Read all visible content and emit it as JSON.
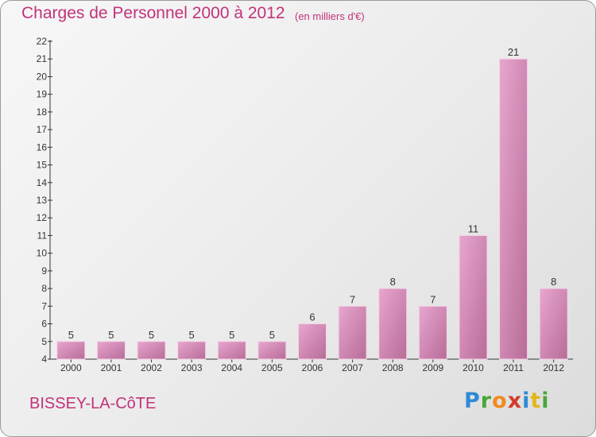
{
  "header": {
    "title": "Charges de Personnel 2000 à 2012",
    "subtitle": "(en milliers d'€)"
  },
  "footer": {
    "commune": "BISSEY-LA-CôTE",
    "logo_letters": [
      "P",
      "r",
      "o",
      "x",
      "i",
      "t",
      "i"
    ],
    "logo_colors": [
      "#2f8ad6",
      "#4aa637",
      "#f08a1c",
      "#d33a2a",
      "#2f8ad6",
      "#e2b51b",
      "#4aa637"
    ]
  },
  "colors": {
    "accent": "#c2327a",
    "bar_light": "#e7a6cf",
    "bar_dark": "#b86c98"
  },
  "chart_data": {
    "type": "bar",
    "title": "Charges de Personnel 2000 à 2012",
    "subtitle": "(en milliers d'€)",
    "xlabel": "",
    "ylabel": "",
    "categories": [
      "2000",
      "2001",
      "2002",
      "2003",
      "2004",
      "2005",
      "2006",
      "2007",
      "2008",
      "2009",
      "2010",
      "2011",
      "2012"
    ],
    "values": [
      5,
      5,
      5,
      5,
      5,
      5,
      6,
      7,
      8,
      7,
      11,
      21,
      8
    ],
    "ylim": [
      4,
      22
    ],
    "yticks": [
      4,
      5,
      6,
      7,
      8,
      9,
      10,
      11,
      12,
      13,
      14,
      15,
      16,
      17,
      18,
      19,
      20,
      21,
      22
    ],
    "grid": false,
    "legend": "none"
  }
}
